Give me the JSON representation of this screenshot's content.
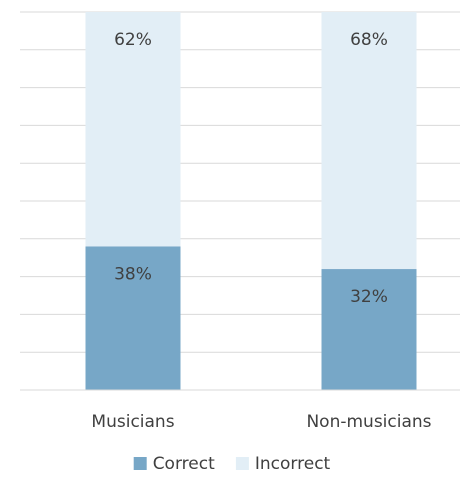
{
  "chart_data": {
    "type": "bar",
    "stacked": true,
    "percent_stacked": true,
    "categories": [
      "Musicians",
      "Non-musicians"
    ],
    "series": [
      {
        "name": "Correct",
        "values": [
          38,
          32
        ],
        "labels": [
          "38%",
          "32%"
        ],
        "color": "#77A7C7"
      },
      {
        "name": "Incorrect",
        "values": [
          62,
          68
        ],
        "labels": [
          "62%",
          "68%"
        ],
        "color": "#E2EEF6"
      }
    ],
    "ylim": [
      0,
      100
    ],
    "grid": true,
    "legend": "bottom",
    "title": "",
    "xlabel": "",
    "ylabel": ""
  }
}
